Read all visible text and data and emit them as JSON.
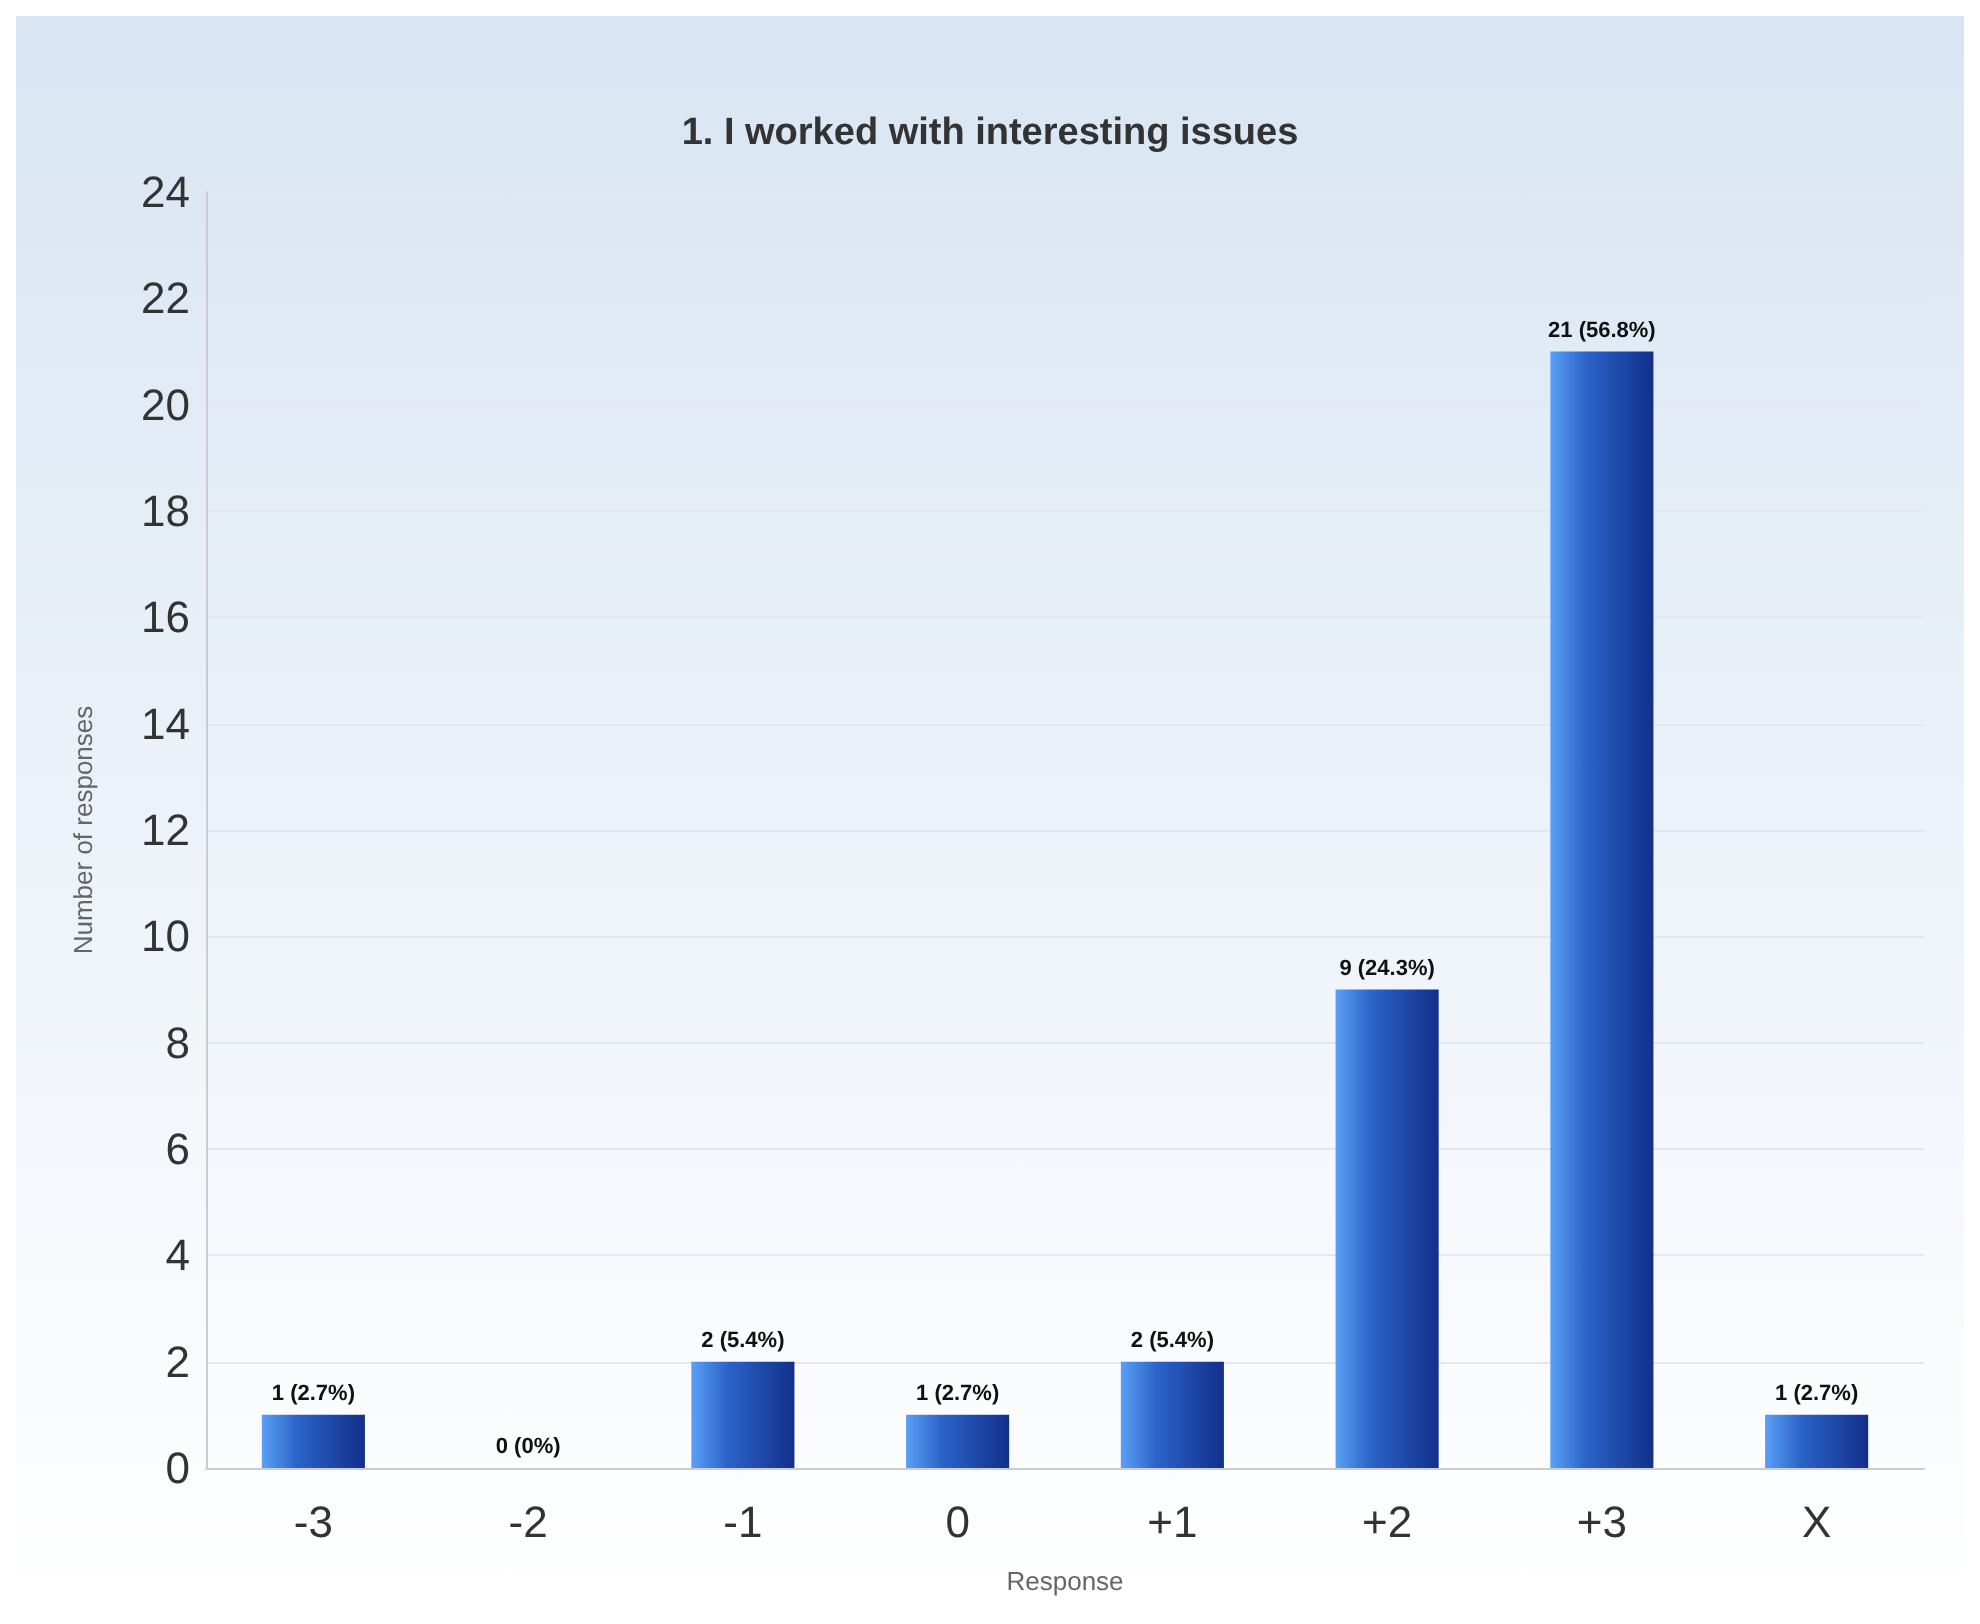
{
  "chart_data": {
    "type": "bar",
    "title": "1. I worked with interesting issues",
    "xlabel": "Response",
    "ylabel": "Number of responses",
    "categories": [
      "-3",
      "-2",
      "-1",
      "0",
      "+1",
      "+2",
      "+3",
      "X"
    ],
    "values": [
      1,
      0,
      2,
      1,
      2,
      9,
      21,
      1
    ],
    "value_labels": [
      "1 (2.7%)",
      "0 (0%)",
      "2 (5.4%)",
      "1 (2.7%)",
      "2 (5.4%)",
      "9 (24.3%)",
      "21 (56.8%)",
      "1 (2.7%)"
    ],
    "color": "#2b63c9",
    "ylim": [
      0,
      24
    ],
    "yticks": [
      0,
      2,
      4,
      6,
      8,
      10,
      12,
      14,
      16,
      18,
      20,
      22,
      24
    ],
    "grid": "y"
  }
}
